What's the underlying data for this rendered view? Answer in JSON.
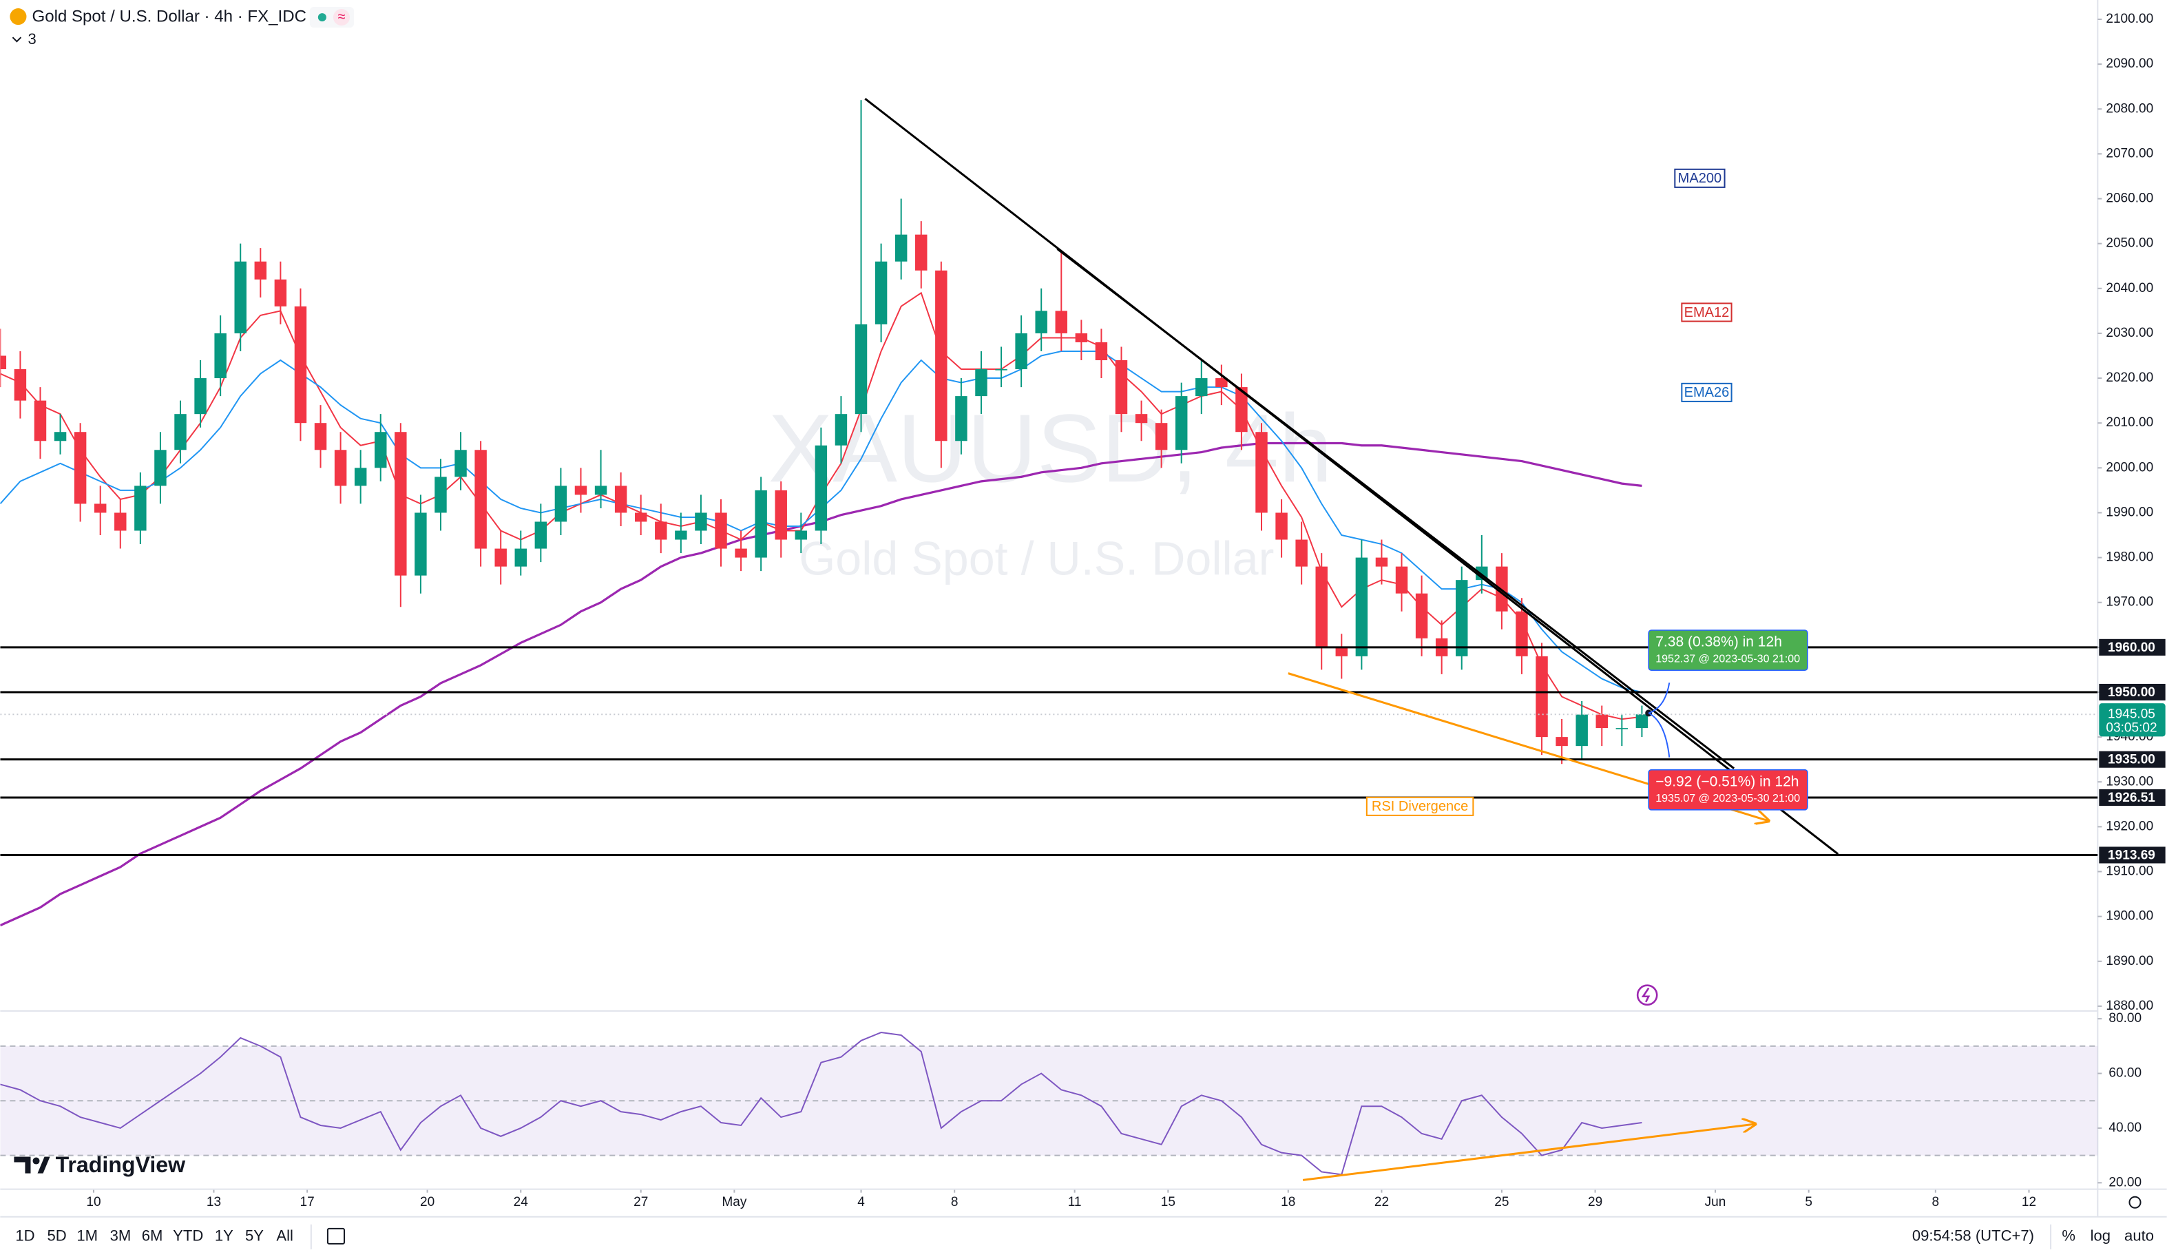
{
  "header": {
    "symbol": "Gold Spot / U.S. Dollar · 4h · FX_IDC",
    "badge": "≈",
    "indicator_count": "3"
  },
  "watermark": {
    "ticker": "XAUUSD, 4h",
    "name": "Gold Spot / U.S. Dollar"
  },
  "brand": "TradingView",
  "toolbar": {
    "ranges": [
      "1D",
      "5D",
      "1M",
      "3M",
      "6M",
      "YTD",
      "1Y",
      "5Y",
      "All"
    ],
    "clock": "09:54:58 (UTC+7)",
    "scale_options": [
      "%",
      "log",
      "auto"
    ]
  },
  "chart_data": [
    {
      "type": "candlestick",
      "x": [
        0,
        3,
        6,
        9,
        12,
        15,
        18,
        21,
        24,
        27,
        30,
        33,
        36,
        39,
        42,
        45,
        48,
        51,
        54,
        57,
        60,
        63,
        66,
        69,
        72,
        75,
        78,
        81,
        84,
        87,
        90,
        93,
        96,
        99,
        102,
        105,
        108,
        111,
        114,
        117,
        120,
        123,
        126,
        129,
        132,
        135,
        138,
        141,
        144,
        147,
        150,
        153,
        156,
        159,
        162,
        165,
        168,
        171,
        174,
        177,
        180,
        183,
        186,
        189,
        192,
        195,
        198,
        201,
        204,
        207,
        210,
        213,
        216,
        219,
        222,
        225,
        228,
        231,
        234,
        237,
        240,
        243,
        246
      ],
      "open": [
        2025,
        2022,
        2015,
        2006,
        2008,
        1992,
        1990,
        1986,
        1996,
        2004,
        2012,
        2020,
        2030,
        2046,
        2042,
        2036,
        2010,
        2004,
        1996,
        2000,
        2008,
        1976,
        1990,
        1998,
        2004,
        1982,
        1978,
        1982,
        1988,
        1996,
        1994,
        1996,
        1990,
        1988,
        1984,
        1986,
        1990,
        1982,
        1980,
        1995,
        1984,
        1986,
        2005,
        2012,
        2032,
        2046,
        2052,
        2044,
        2006,
        2016,
        2022,
        2022,
        2030,
        2035,
        2030,
        2028,
        2024,
        2012,
        2010,
        2004,
        2016,
        2020,
        2018,
        2008,
        1990,
        1984,
        1978,
        1960,
        1958,
        1980,
        1978,
        1972,
        1962,
        1958,
        1975,
        1978,
        1968,
        1958,
        1940,
        1938,
        1945,
        1942,
        1942
      ],
      "high": [
        2031,
        2026,
        2018,
        2012,
        2010,
        1996,
        1993,
        1999,
        2008,
        2015,
        2024,
        2034,
        2050,
        2049,
        2046,
        2040,
        2014,
        2008,
        2004,
        2012,
        2010,
        1994,
        2002,
        2008,
        2006,
        1986,
        1986,
        1992,
        2000,
        2000,
        2004,
        1999,
        1994,
        1992,
        1990,
        1994,
        1993,
        1986,
        1998,
        1997,
        1990,
        2009,
        2016,
        2082,
        2050,
        2060,
        2055,
        2046,
        2020,
        2026,
        2027,
        2034,
        2040,
        2048,
        2033,
        2031,
        2027,
        2015,
        2013,
        2019,
        2024,
        2023,
        2021,
        2010,
        1993,
        1988,
        1981,
        1963,
        1984,
        1984,
        1981,
        1976,
        1966,
        1978,
        1985,
        1981,
        1971,
        1961,
        1944,
        1948,
        1947,
        1945,
        1947
      ],
      "low": [
        2018,
        2011,
        2002,
        2003,
        1988,
        1985,
        1982,
        1983,
        1992,
        2001,
        2009,
        2016,
        2026,
        2038,
        2032,
        2006,
        2000,
        1992,
        1992,
        1997,
        1969,
        1972,
        1986,
        1995,
        1978,
        1974,
        1976,
        1979,
        1985,
        1990,
        1991,
        1987,
        1985,
        1981,
        1981,
        1983,
        1978,
        1977,
        1977,
        1980,
        1981,
        1983,
        2001,
        2008,
        2028,
        2042,
        2040,
        2000,
        2003,
        2012,
        2018,
        2018,
        2026,
        2026,
        2024,
        2020,
        2008,
        2006,
        2000,
        2001,
        2012,
        2014,
        2004,
        1986,
        1980,
        1974,
        1955,
        1953,
        1955,
        1974,
        1968,
        1958,
        1954,
        1955,
        1972,
        1964,
        1954,
        1936,
        1934,
        1935,
        1938,
        1938,
        1940
      ],
      "close": [
        2022,
        2015,
        2006,
        2008,
        1992,
        1990,
        1986,
        1996,
        2004,
        2012,
        2020,
        2030,
        2046,
        2042,
        2036,
        2010,
        2004,
        1996,
        2000,
        2008,
        1976,
        1990,
        1998,
        2004,
        1982,
        1978,
        1982,
        1988,
        1996,
        1994,
        1996,
        1990,
        1988,
        1984,
        1986,
        1990,
        1982,
        1980,
        1995,
        1984,
        1986,
        2005,
        2012,
        2032,
        2046,
        2052,
        2044,
        2006,
        2016,
        2022,
        2022,
        2030,
        2035,
        2030,
        2028,
        2024,
        2012,
        2010,
        2004,
        2016,
        2020,
        2018,
        2008,
        1990,
        1984,
        1978,
        1960,
        1958,
        1980,
        1978,
        1972,
        1962,
        1958,
        1975,
        1978,
        1968,
        1958,
        1940,
        1938,
        1945,
        1942,
        1942,
        1945.05
      ],
      "up_color": "#089981",
      "down_color": "#f23645",
      "series": [
        {
          "name": "MA200",
          "color": "#9c27b0",
          "label_color": "#1f3a93",
          "values": [
            1898,
            1900,
            1902,
            1905,
            1907,
            1909,
            1911,
            1914,
            1916,
            1918,
            1920,
            1922,
            1925,
            1928,
            1930.5,
            1933,
            1936,
            1939,
            1941,
            1944,
            1947,
            1949,
            1952,
            1954,
            1956,
            1958.5,
            1961,
            1963,
            1965,
            1968,
            1970,
            1973,
            1975,
            1978,
            1980,
            1981,
            1982.5,
            1984,
            1985,
            1986,
            1987,
            1988,
            1989.5,
            1990.5,
            1991.5,
            1993,
            1994,
            1995,
            1996,
            1997,
            1997.5,
            1998,
            1999,
            1999.5,
            2000,
            2001,
            2001.5,
            2002,
            2002.5,
            2003,
            2003.5,
            2004.5,
            2005,
            2005.5,
            2005.5,
            2005.5,
            2005.5,
            2005.5,
            2005,
            2005,
            2004.5,
            2004,
            2003.5,
            2003,
            2002.5,
            2002,
            2001.5,
            2000.5,
            1999.5,
            1998.5,
            1997.5,
            1996.5,
            1996
          ]
        },
        {
          "name": "EMA12",
          "color": "#f23645",
          "label_color": "#d32f2f",
          "values": [
            2021,
            2019,
            2014,
            2012,
            2004,
            1998,
            1993,
            1994,
            1998,
            2004,
            2010,
            2018,
            2029,
            2034,
            2035,
            2025,
            2017,
            2009,
            2005,
            2006,
            1994,
            1992,
            1994,
            1998,
            1992,
            1986,
            1984,
            1986,
            1990,
            1992,
            1994,
            1992,
            1990,
            1988,
            1987,
            1988,
            1986,
            1984,
            1988,
            1986,
            1986,
            1994,
            2001,
            2013,
            2026,
            2036,
            2039,
            2026,
            2022,
            2022,
            2022,
            2025,
            2029,
            2029,
            2029,
            2027,
            2021,
            2017,
            2012,
            2014,
            2016,
            2017,
            2013,
            2004,
            1996,
            1989,
            1977,
            1969,
            1973,
            1975,
            1974,
            1969,
            1965,
            1969,
            1973,
            1971,
            1966,
            1956,
            1949,
            1947,
            1945,
            1944,
            1944.5
          ]
        },
        {
          "name": "EMA26",
          "color": "#2196f3",
          "label_color": "#1565c0",
          "values": [
            1992,
            1997,
            1999,
            2001,
            1999,
            1997,
            1995,
            1995,
            1997,
            2000,
            2004,
            2009,
            2016,
            2021,
            2024,
            2021,
            2018,
            2014,
            2011,
            2010,
            2003,
            2000,
            2000,
            2001,
            1997,
            1993,
            1991,
            1990,
            1991,
            1992,
            1993,
            1992,
            1991,
            1990,
            1989,
            1989,
            1988,
            1986,
            1988,
            1987,
            1987,
            1991,
            1995,
            2002,
            2011,
            2019,
            2024,
            2020,
            2019,
            2020,
            2020,
            2022,
            2025,
            2026,
            2026,
            2026,
            2023,
            2020,
            2017,
            2017,
            2018,
            2018,
            2016,
            2011,
            2006,
            2000,
            1992,
            1985,
            1984,
            1983,
            1981,
            1977,
            1973,
            1973,
            1974,
            1973,
            1970,
            1964,
            1959,
            1956,
            1953,
            1951,
            1950
          ]
        }
      ],
      "xlim": [
        0,
        314.3
      ],
      "xticks": [
        {
          "value": 14,
          "label": "10"
        },
        {
          "value": 32,
          "label": "13"
        },
        {
          "value": 46,
          "label": "17"
        },
        {
          "value": 64,
          "label": "20"
        },
        {
          "value": 78,
          "label": "24"
        },
        {
          "value": 96,
          "label": "27"
        },
        {
          "value": 110,
          "label": "May"
        },
        {
          "value": 129,
          "label": "4"
        },
        {
          "value": 143,
          "label": "8"
        },
        {
          "value": 161,
          "label": "11"
        },
        {
          "value": 175,
          "label": "15"
        },
        {
          "value": 193,
          "label": "18"
        },
        {
          "value": 207,
          "label": "22"
        },
        {
          "value": 225,
          "label": "25"
        },
        {
          "value": 239,
          "label": "29"
        },
        {
          "value": 257,
          "label": "Jun"
        },
        {
          "value": 271,
          "label": "5"
        },
        {
          "value": 290,
          "label": "8"
        },
        {
          "value": 304,
          "label": "12"
        }
      ],
      "ylim": [
        1879.4,
        2104.3
      ],
      "yticks": [
        {
          "value": 1880,
          "label": "1880.00"
        },
        {
          "value": 1890,
          "label": "1890.00"
        },
        {
          "value": 1900,
          "label": "1900.00"
        },
        {
          "value": 1910,
          "label": "1910.00"
        },
        {
          "value": 1920,
          "label": "1920.00"
        },
        {
          "value": 1930,
          "label": "1930.00"
        },
        {
          "value": 1940,
          "label": "1940.00"
        },
        {
          "value": 1950,
          "label": "1950.00"
        },
        {
          "value": 1960,
          "label": "1960.00"
        },
        {
          "value": 1970,
          "label": "1970.00"
        },
        {
          "value": 1980,
          "label": "1980.00"
        },
        {
          "value": 1990,
          "label": "1990.00"
        },
        {
          "value": 2000,
          "label": "2000.00"
        },
        {
          "value": 2010,
          "label": "2010.00"
        },
        {
          "value": 2020,
          "label": "2020.00"
        },
        {
          "value": 2030,
          "label": "2030.00"
        },
        {
          "value": 2040,
          "label": "2040.00"
        },
        {
          "value": 2050,
          "label": "2050.00"
        },
        {
          "value": 2060,
          "label": "2060.00"
        },
        {
          "value": 2070,
          "label": "2070.00"
        },
        {
          "value": 2080,
          "label": "2080.00"
        },
        {
          "value": 2090,
          "label": "2090.00"
        },
        {
          "value": 2100,
          "label": "2100.00"
        }
      ],
      "levels": [
        {
          "value": 1960,
          "label": "1960.00"
        },
        {
          "value": 1950,
          "label": "1950.00"
        },
        {
          "value": 1935,
          "label": "1935.00"
        },
        {
          "value": 1926.51,
          "label": "1926.51"
        },
        {
          "value": 1913.69,
          "label": "1913.69"
        }
      ],
      "trendlines": [
        {
          "x": [
            129.6,
            275.4
          ],
          "y": [
            2082.3,
            1913.9
          ],
          "color": "#000000"
        },
        {
          "x": [
            158.4,
            259.8
          ],
          "y": [
            2048.8,
            1933
          ],
          "color": "#000000"
        },
        {
          "x": [
            193,
            265
          ],
          "y": [
            1954.2,
            1921.3
          ],
          "color": "#ff9800",
          "arrow": true
        }
      ],
      "annotation": {
        "text": "RSI Divergence",
        "color": "#ff9800"
      },
      "countdown": "03:05:02",
      "forecasts": [
        {
          "change": "7.38 (0.38%) in 12h",
          "target": "1952.37 @ 2023-05-30  21:00",
          "color": "#4caf50"
        },
        {
          "change": "−9.92 (−0.51%) in 12h",
          "target": "1935.07 @ 2023-05-30  21:00",
          "color": "#f23645"
        }
      ]
    },
    {
      "type": "line",
      "values": [
        56,
        54,
        50,
        48,
        44,
        42,
        40,
        45,
        50,
        55,
        60,
        66,
        73,
        70,
        66,
        44,
        41,
        40,
        43,
        46,
        32,
        42,
        48,
        52,
        40,
        37,
        40,
        44,
        50,
        48,
        50,
        46,
        45,
        43,
        46,
        48,
        42,
        41,
        51,
        44,
        46,
        64,
        66,
        72,
        75,
        74,
        68,
        40,
        46,
        50,
        50,
        56,
        60,
        54,
        52,
        48,
        38,
        36,
        34,
        48,
        52,
        50,
        44,
        34,
        31,
        30,
        24,
        23,
        48,
        48,
        44,
        38,
        36,
        50,
        52,
        44,
        38,
        30,
        32,
        42,
        40,
        41,
        42
      ],
      "color": "#7e57c2",
      "ylim": [
        17.9,
        82.1
      ],
      "yticks": [
        {
          "value": 20,
          "label": "20.00"
        },
        {
          "value": 40,
          "label": "40.00"
        },
        {
          "value": 60,
          "label": "60.00"
        },
        {
          "value": 80,
          "label": "80.00"
        }
      ],
      "levels": [
        30,
        50,
        70
      ],
      "trendline": {
        "x": [
          195.2,
          263
        ],
        "y": [
          21,
          41.5
        ],
        "color": "#ff9800"
      }
    }
  ]
}
